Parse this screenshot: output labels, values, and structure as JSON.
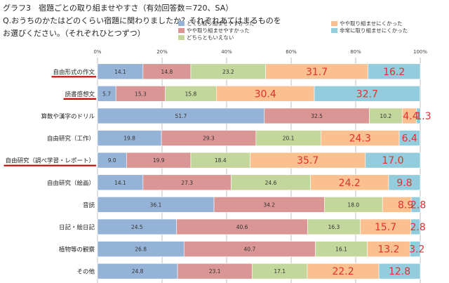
{
  "header": {
    "title": "グラフ3　宿題ごとの取り組ませやすさ（有効回答数＝720、SA）",
    "question_line1": "Q.おうちのかたはどのくらい宿題に関わりましたか？それぞれあてはまるものを",
    "question_line2": "お選びください。（それぞれひとつずつ）"
  },
  "colors": {
    "series": [
      "#95b3d7",
      "#d99694",
      "#c3d69b",
      "#fac090",
      "#93cddd"
    ],
    "highlight_text": "#e03030",
    "underline": "#cc0000",
    "grid": "#bfbfbf"
  },
  "chart_data": {
    "type": "bar",
    "orientation": "horizontal",
    "stacked": true,
    "percent": true,
    "title": "グラフ3　宿題ごとの取り組ませやすさ（有効回答数＝720、SA）",
    "xlim": [
      0,
      100
    ],
    "x_ticks": [
      "0%",
      "20%",
      "40%",
      "60%",
      "80%",
      "100%"
    ],
    "legend_position": "top-right",
    "categories": [
      "自由形式の作文",
      "読書感想文",
      "算数や漢字のドリル",
      "自由研究（工作）",
      "自由研究（調べ学習・レポート）",
      "自由研究（絵画）",
      "音読",
      "日記・絵日記",
      "植物等の観察",
      "その他"
    ],
    "underlined_categories": [
      "自由形式の作文",
      "読書感想文",
      "自由研究（調べ学習・レポート）"
    ],
    "series": [
      {
        "name": "とても取り組ませやすかった",
        "values": [
          14.1,
          5.7,
          51.7,
          19.8,
          9.0,
          14.1,
          36.1,
          24.5,
          26.8,
          24.8
        ]
      },
      {
        "name": "やや取り組ませやすかった",
        "values": [
          14.8,
          15.3,
          32.5,
          29.3,
          19.9,
          27.3,
          34.2,
          40.6,
          40.7,
          23.1
        ]
      },
      {
        "name": "どちらともいえない",
        "values": [
          23.2,
          15.8,
          10.2,
          20.1,
          18.4,
          24.6,
          18.0,
          16.3,
          16.1,
          17.1
        ]
      },
      {
        "name": "やや取り組ませにくかった",
        "values": [
          31.7,
          30.4,
          4.4,
          24.3,
          35.7,
          24.2,
          8.9,
          15.7,
          13.2,
          22.2
        ]
      },
      {
        "name": "非常に取り組ませにくかった",
        "values": [
          16.2,
          32.7,
          1.3,
          6.4,
          17.0,
          9.8,
          2.8,
          2.8,
          3.2,
          12.8
        ]
      }
    ],
    "display_labels": [
      [
        "14.1",
        "14.8",
        "23.2",
        "31.7",
        "16.2"
      ],
      [
        "5.7",
        "15.3",
        "15.8",
        "30.4",
        "32.7"
      ],
      [
        "51.7",
        "32.5",
        "10.2",
        "4.4",
        "1.3"
      ],
      [
        "19.8",
        "29.3",
        "20.1",
        "24.3",
        "6.4"
      ],
      [
        "9.0",
        "19.9",
        "18.4",
        "35.7",
        "17.0"
      ],
      [
        "14.1",
        "27.3",
        "24.6",
        "24.2",
        "9.8"
      ],
      [
        "36.1",
        "34.2",
        "18.0",
        "8.9",
        "2.8"
      ],
      [
        "24.5",
        "40.6",
        "16.3",
        "15.7",
        "2.8"
      ],
      [
        "26.8",
        "40.7",
        "16.1",
        "13.2",
        "3.2"
      ],
      [
        "24.8",
        "23.1",
        "17.1",
        "22.2",
        "12.8"
      ]
    ]
  }
}
